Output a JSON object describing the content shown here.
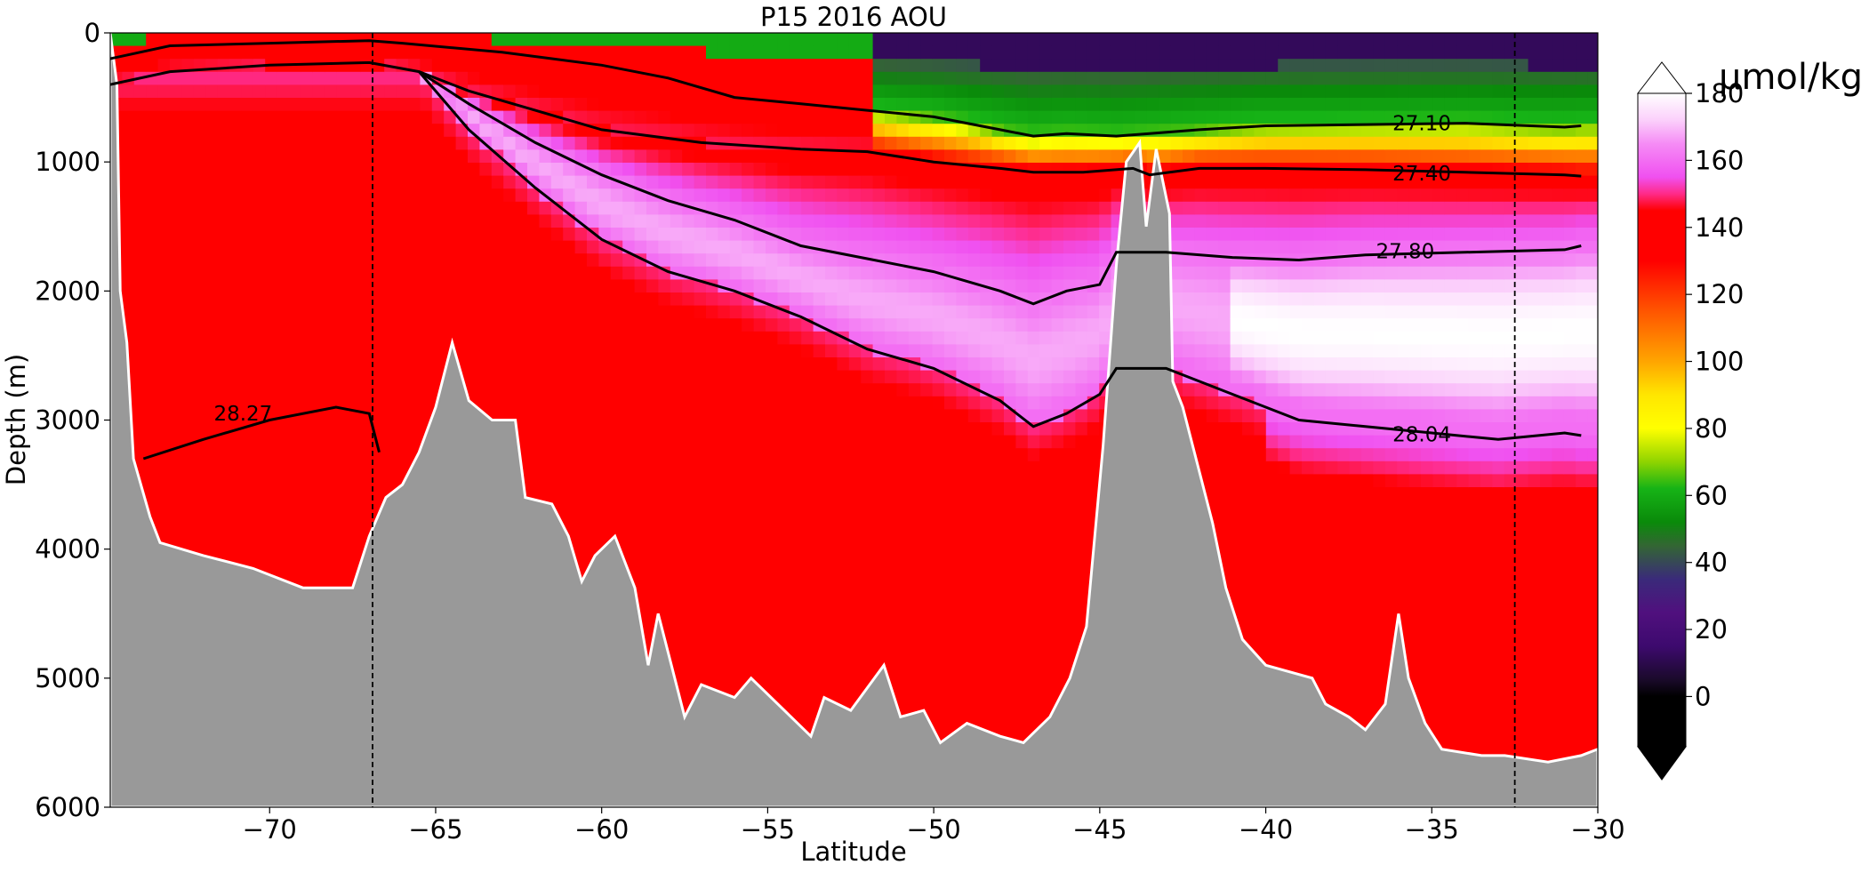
{
  "chart_data": {
    "type": "heatmap",
    "title": "P15 2016 AOU",
    "xlabel": "Latitude",
    "ylabel": "Depth (m)",
    "xlim": [
      -74.8,
      -30
    ],
    "ylim": [
      6000,
      0
    ],
    "x_ticks": [
      -70,
      -65,
      -60,
      -55,
      -50,
      -45,
      -40,
      -35,
      -30
    ],
    "x_tick_labels": [
      "−70",
      "−65",
      "−60",
      "−55",
      "−50",
      "−45",
      "−40",
      "−35",
      "−30"
    ],
    "y_ticks": [
      0,
      1000,
      2000,
      3000,
      4000,
      5000,
      6000
    ],
    "y_tick_labels": [
      "0",
      "1000",
      "2000",
      "3000",
      "4000",
      "5000",
      "6000"
    ],
    "colorbar": {
      "label": "µmol/kg",
      "range": [
        -15,
        180
      ],
      "ticks": [
        0,
        20,
        40,
        60,
        80,
        100,
        120,
        140,
        160,
        180
      ],
      "tick_labels": [
        "0",
        "20",
        "40",
        "60",
        "80",
        "100",
        "120",
        "140",
        "160",
        "180"
      ],
      "extend": "both",
      "stops": [
        {
          "v": -15,
          "c": "#000000"
        },
        {
          "v": 0,
          "c": "#000000"
        },
        {
          "v": 5,
          "c": "#1a0a2a"
        },
        {
          "v": 15,
          "c": "#3d0a6e"
        },
        {
          "v": 25,
          "c": "#50107e"
        },
        {
          "v": 35,
          "c": "#3a2a7a"
        },
        {
          "v": 45,
          "c": "#336633"
        },
        {
          "v": 52,
          "c": "#0a8a0a"
        },
        {
          "v": 62,
          "c": "#16b316"
        },
        {
          "v": 70,
          "c": "#8fd400"
        },
        {
          "v": 80,
          "c": "#ffff00"
        },
        {
          "v": 90,
          "c": "#ffe600"
        },
        {
          "v": 100,
          "c": "#ffa500"
        },
        {
          "v": 115,
          "c": "#ff5500"
        },
        {
          "v": 130,
          "c": "#ff0000"
        },
        {
          "v": 145,
          "c": "#ff0000"
        },
        {
          "v": 150,
          "c": "#ff2a88"
        },
        {
          "v": 155,
          "c": "#f050f0"
        },
        {
          "v": 165,
          "c": "#f58cf5"
        },
        {
          "v": 172,
          "c": "#fbd0fb"
        },
        {
          "v": 180,
          "c": "#ffffff"
        }
      ]
    },
    "contours": [
      {
        "label": "27.10",
        "label_at": [
          -35.3,
          700
        ],
        "points": [
          [
            -74.8,
            200
          ],
          [
            -73,
            100
          ],
          [
            -70,
            80
          ],
          [
            -67,
            60
          ],
          [
            -66,
            80
          ],
          [
            -63,
            150
          ],
          [
            -61.5,
            200
          ],
          [
            -60,
            250
          ],
          [
            -58,
            350
          ],
          [
            -56,
            500
          ],
          [
            -54,
            550
          ],
          [
            -52,
            600
          ],
          [
            -50,
            650
          ],
          [
            -48,
            750
          ],
          [
            -47,
            800
          ],
          [
            -46,
            780
          ],
          [
            -44.5,
            800
          ],
          [
            -43.5,
            780
          ],
          [
            -42,
            750
          ],
          [
            -40,
            720
          ],
          [
            -37,
            710
          ],
          [
            -34,
            700
          ],
          [
            -31,
            730
          ],
          [
            -30.5,
            720
          ]
        ]
      },
      {
        "label": "27.40",
        "label_at": [
          -35.3,
          1090
        ],
        "points": [
          [
            -74.8,
            400
          ],
          [
            -73,
            300
          ],
          [
            -70,
            250
          ],
          [
            -67,
            230
          ],
          [
            -65.5,
            300
          ],
          [
            -64,
            450
          ],
          [
            -62,
            600
          ],
          [
            -60,
            750
          ],
          [
            -57,
            850
          ],
          [
            -54,
            900
          ],
          [
            -52,
            920
          ],
          [
            -50,
            1000
          ],
          [
            -48,
            1050
          ],
          [
            -47,
            1080
          ],
          [
            -45.5,
            1080
          ],
          [
            -44,
            1050
          ],
          [
            -43.5,
            1100
          ],
          [
            -42,
            1050
          ],
          [
            -40,
            1050
          ],
          [
            -37,
            1060
          ],
          [
            -34,
            1080
          ],
          [
            -31,
            1100
          ],
          [
            -30.5,
            1110
          ]
        ]
      },
      {
        "label": "27.80",
        "label_at": [
          -35.8,
          1690
        ],
        "points": [
          [
            -65.5,
            300
          ],
          [
            -64,
            550
          ],
          [
            -62,
            850
          ],
          [
            -60,
            1100
          ],
          [
            -58,
            1300
          ],
          [
            -56,
            1450
          ],
          [
            -54,
            1650
          ],
          [
            -52,
            1750
          ],
          [
            -50,
            1850
          ],
          [
            -48,
            2000
          ],
          [
            -47,
            2100
          ],
          [
            -46,
            2000
          ],
          [
            -45,
            1950
          ],
          [
            -44.5,
            1700
          ],
          [
            -43,
            1700
          ],
          [
            -41,
            1740
          ],
          [
            -39,
            1760
          ],
          [
            -37,
            1720
          ],
          [
            -34,
            1700
          ],
          [
            -31,
            1680
          ],
          [
            -30.5,
            1650
          ]
        ]
      },
      {
        "label": "28.04",
        "label_at": [
          -35.3,
          3110
        ],
        "points": [
          [
            -65.5,
            300
          ],
          [
            -64,
            750
          ],
          [
            -62,
            1200
          ],
          [
            -60,
            1600
          ],
          [
            -58,
            1850
          ],
          [
            -56,
            2000
          ],
          [
            -54,
            2200
          ],
          [
            -52,
            2450
          ],
          [
            -50,
            2600
          ],
          [
            -48,
            2850
          ],
          [
            -47,
            3050
          ],
          [
            -46,
            2950
          ],
          [
            -45,
            2800
          ],
          [
            -44.5,
            2600
          ],
          [
            -43,
            2600
          ],
          [
            -41,
            2800
          ],
          [
            -39,
            3000
          ],
          [
            -37,
            3050
          ],
          [
            -35,
            3100
          ],
          [
            -33,
            3150
          ],
          [
            -31,
            3100
          ],
          [
            -30.5,
            3120
          ]
        ]
      },
      {
        "label": "28.27",
        "label_at": [
          -70.8,
          2950
        ],
        "points": [
          [
            -73.8,
            3300
          ],
          [
            -72,
            3150
          ],
          [
            -70,
            3000
          ],
          [
            -68,
            2900
          ],
          [
            -67,
            2950
          ],
          [
            -66.7,
            3250
          ]
        ]
      }
    ],
    "reference_lines": [
      -66.9,
      -32.5
    ]
  }
}
